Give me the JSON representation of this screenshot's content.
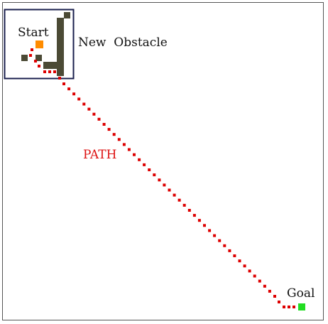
{
  "labels": {
    "start": "Start",
    "new_obstacle": "New  Obstacle",
    "path": "PATH",
    "goal": "Goal"
  },
  "colors": {
    "frame": "#555555",
    "highlight_box": "#1a1f4d",
    "obstacle": "#4b4a35",
    "start_marker": "#ff8c00",
    "goal_marker": "#22dd22",
    "path": "#dd0000",
    "label_text": "#111111",
    "path_label_text": "#dd1111"
  }
}
